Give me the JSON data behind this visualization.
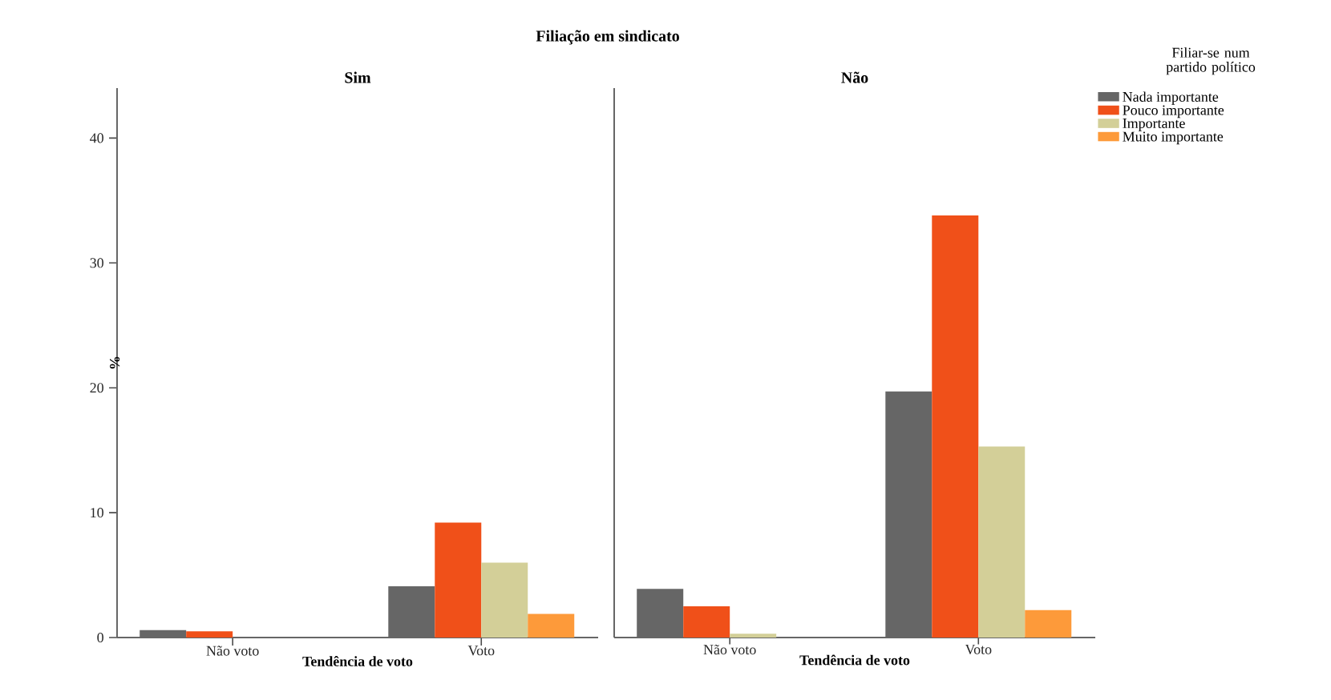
{
  "chart_data": [
    {
      "type": "bar",
      "title": "Filiação em sindicato",
      "subtitle": "Sim",
      "xlabel": "Tendência de voto",
      "ylabel": "%",
      "categories": [
        "Não voto",
        "Voto"
      ],
      "ylim": [
        0,
        44
      ],
      "yticks": [
        0,
        10,
        20,
        30,
        40
      ],
      "series": [
        {
          "color": "#666666",
          "values": [
            0.6,
            4.1
          ]
        },
        {
          "color": "#f05019",
          "values": [
            0.5,
            9.2
          ]
        },
        {
          "color": "#d3cf98",
          "values": [
            0,
            6.0
          ]
        },
        {
          "color": "#fd9a3a",
          "values": [
            0,
            1.9
          ]
        }
      ]
    },
    {
      "type": "bar",
      "subtitle": "Não",
      "xlabel": "Tendência de voto",
      "legend_title": "Filiar-se num partido político",
      "legend": "top right",
      "tick_labels": "x",
      "categories": [
        "Não voto",
        "Voto"
      ],
      "ylim": [
        0,
        44
      ],
      "yticks": [
        0,
        10,
        20,
        30,
        40
      ],
      "series": [
        {
          "name": "Nada importante",
          "color": "#666666",
          "values": [
            3.9,
            19.7
          ]
        },
        {
          "name": "Pouco importante",
          "color": "#f05019",
          "values": [
            2.5,
            33.8
          ]
        },
        {
          "name": "Importante",
          "color": "#d3cf98",
          "values": [
            0.3,
            15.3
          ]
        },
        {
          "name": "Muito importante",
          "color": "#fd9a3a",
          "values": [
            0,
            2.2
          ]
        }
      ]
    }
  ]
}
